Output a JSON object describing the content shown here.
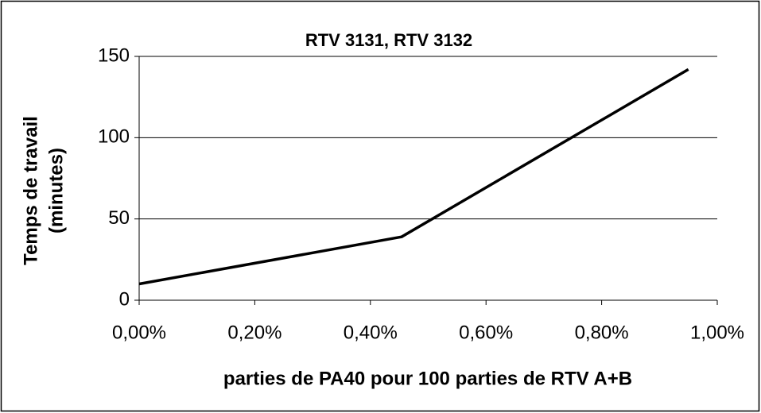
{
  "chart_data": {
    "type": "line",
    "title": "RTV 3131, RTV 3132",
    "x_label": "parties de PA40 pour 100 parties de RTV A+B",
    "y_label": [
      "Temps de travail",
      "(minutes)"
    ],
    "x": [
      0,
      0.454,
      0.95
    ],
    "series": [
      {
        "name": "RTV 3131, RTV 3132",
        "color": "#000000",
        "values": [
          10,
          39,
          142
        ]
      }
    ],
    "xlim": [
      0,
      1
    ],
    "xticks": [
      {
        "value": 0,
        "label": "0,00%"
      },
      {
        "value": 0.2,
        "label": "0,20%"
      },
      {
        "value": 0.4,
        "label": "0,40%"
      },
      {
        "value": 0.6,
        "label": "0,60%"
      },
      {
        "value": 0.8,
        "label": "0,80%"
      },
      {
        "value": 1,
        "label": "1,00%"
      }
    ],
    "ylim": [
      0,
      150
    ],
    "yticks": [
      0,
      50,
      100,
      150
    ],
    "grid": true
  }
}
